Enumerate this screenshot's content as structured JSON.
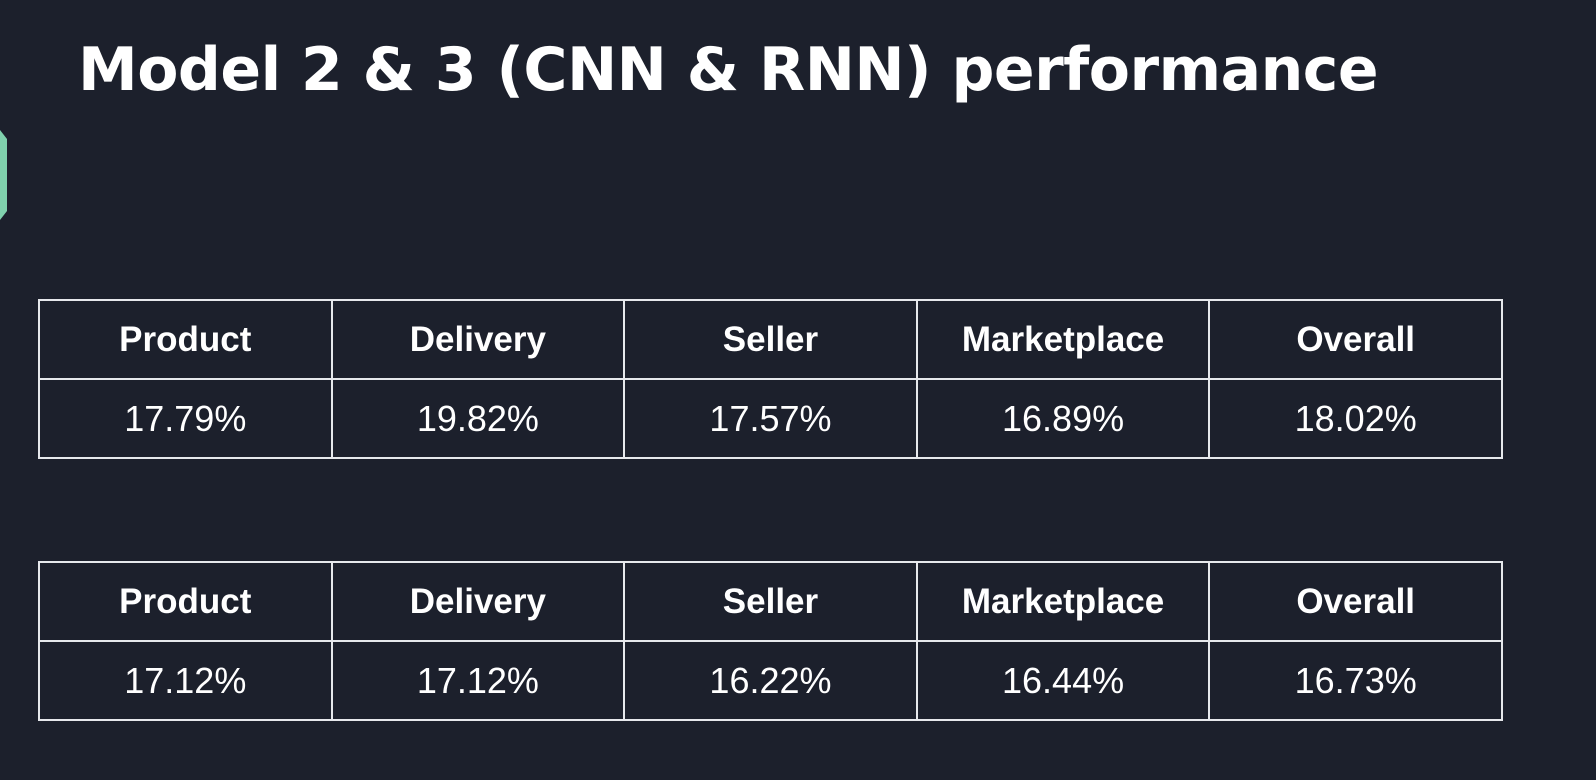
{
  "slide": {
    "title": "Model 2 & 3 (CNN & RNN) performance"
  },
  "tables": [
    {
      "headers": [
        "Product",
        "Delivery",
        "Seller",
        "Marketplace",
        "Overall"
      ],
      "values": [
        "17.79%",
        "19.82%",
        "17.57%",
        "16.89%",
        "18.02%"
      ]
    },
    {
      "headers": [
        "Product",
        "Delivery",
        "Seller",
        "Marketplace",
        "Overall"
      ],
      "values": [
        "17.12%",
        "17.12%",
        "16.22%",
        "16.44%",
        "16.73%"
      ]
    }
  ],
  "colors": {
    "background": "#1c202c",
    "text": "#ffffff",
    "border": "#e6e8ec",
    "accent": "#7fd1ad"
  }
}
